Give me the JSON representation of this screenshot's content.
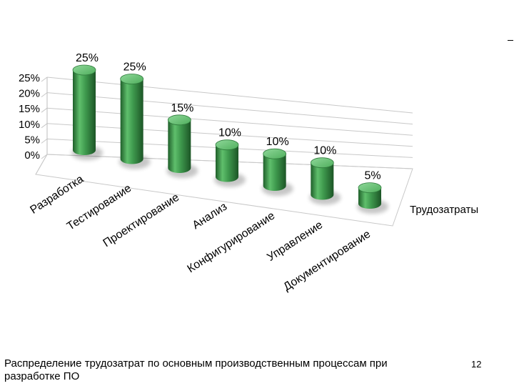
{
  "chart_data": {
    "type": "bar",
    "style": "3d-cylinder",
    "categories": [
      "Разработка",
      "Тестирование",
      "Проектирование",
      "Анализ",
      "Конфигурирование",
      "Управление",
      "Документирование"
    ],
    "series": [
      {
        "name": "Трудозатраты",
        "values": [
          25,
          25,
          15,
          10,
          10,
          10,
          5
        ],
        "color": "#3f9a4e"
      }
    ],
    "data_labels": [
      "25%",
      "25%",
      "15%",
      "10%",
      "10%",
      "10%",
      "5%"
    ],
    "y_ticks": [
      "0%",
      "5%",
      "10%",
      "15%",
      "20%",
      "25%"
    ],
    "ylim": [
      0,
      25
    ],
    "grid": true,
    "legend": "right"
  },
  "caption": {
    "line1": "Распределение трудозатрат по основным производственным процессам при",
    "line2": "разработке ПО"
  },
  "slide_number": "12"
}
